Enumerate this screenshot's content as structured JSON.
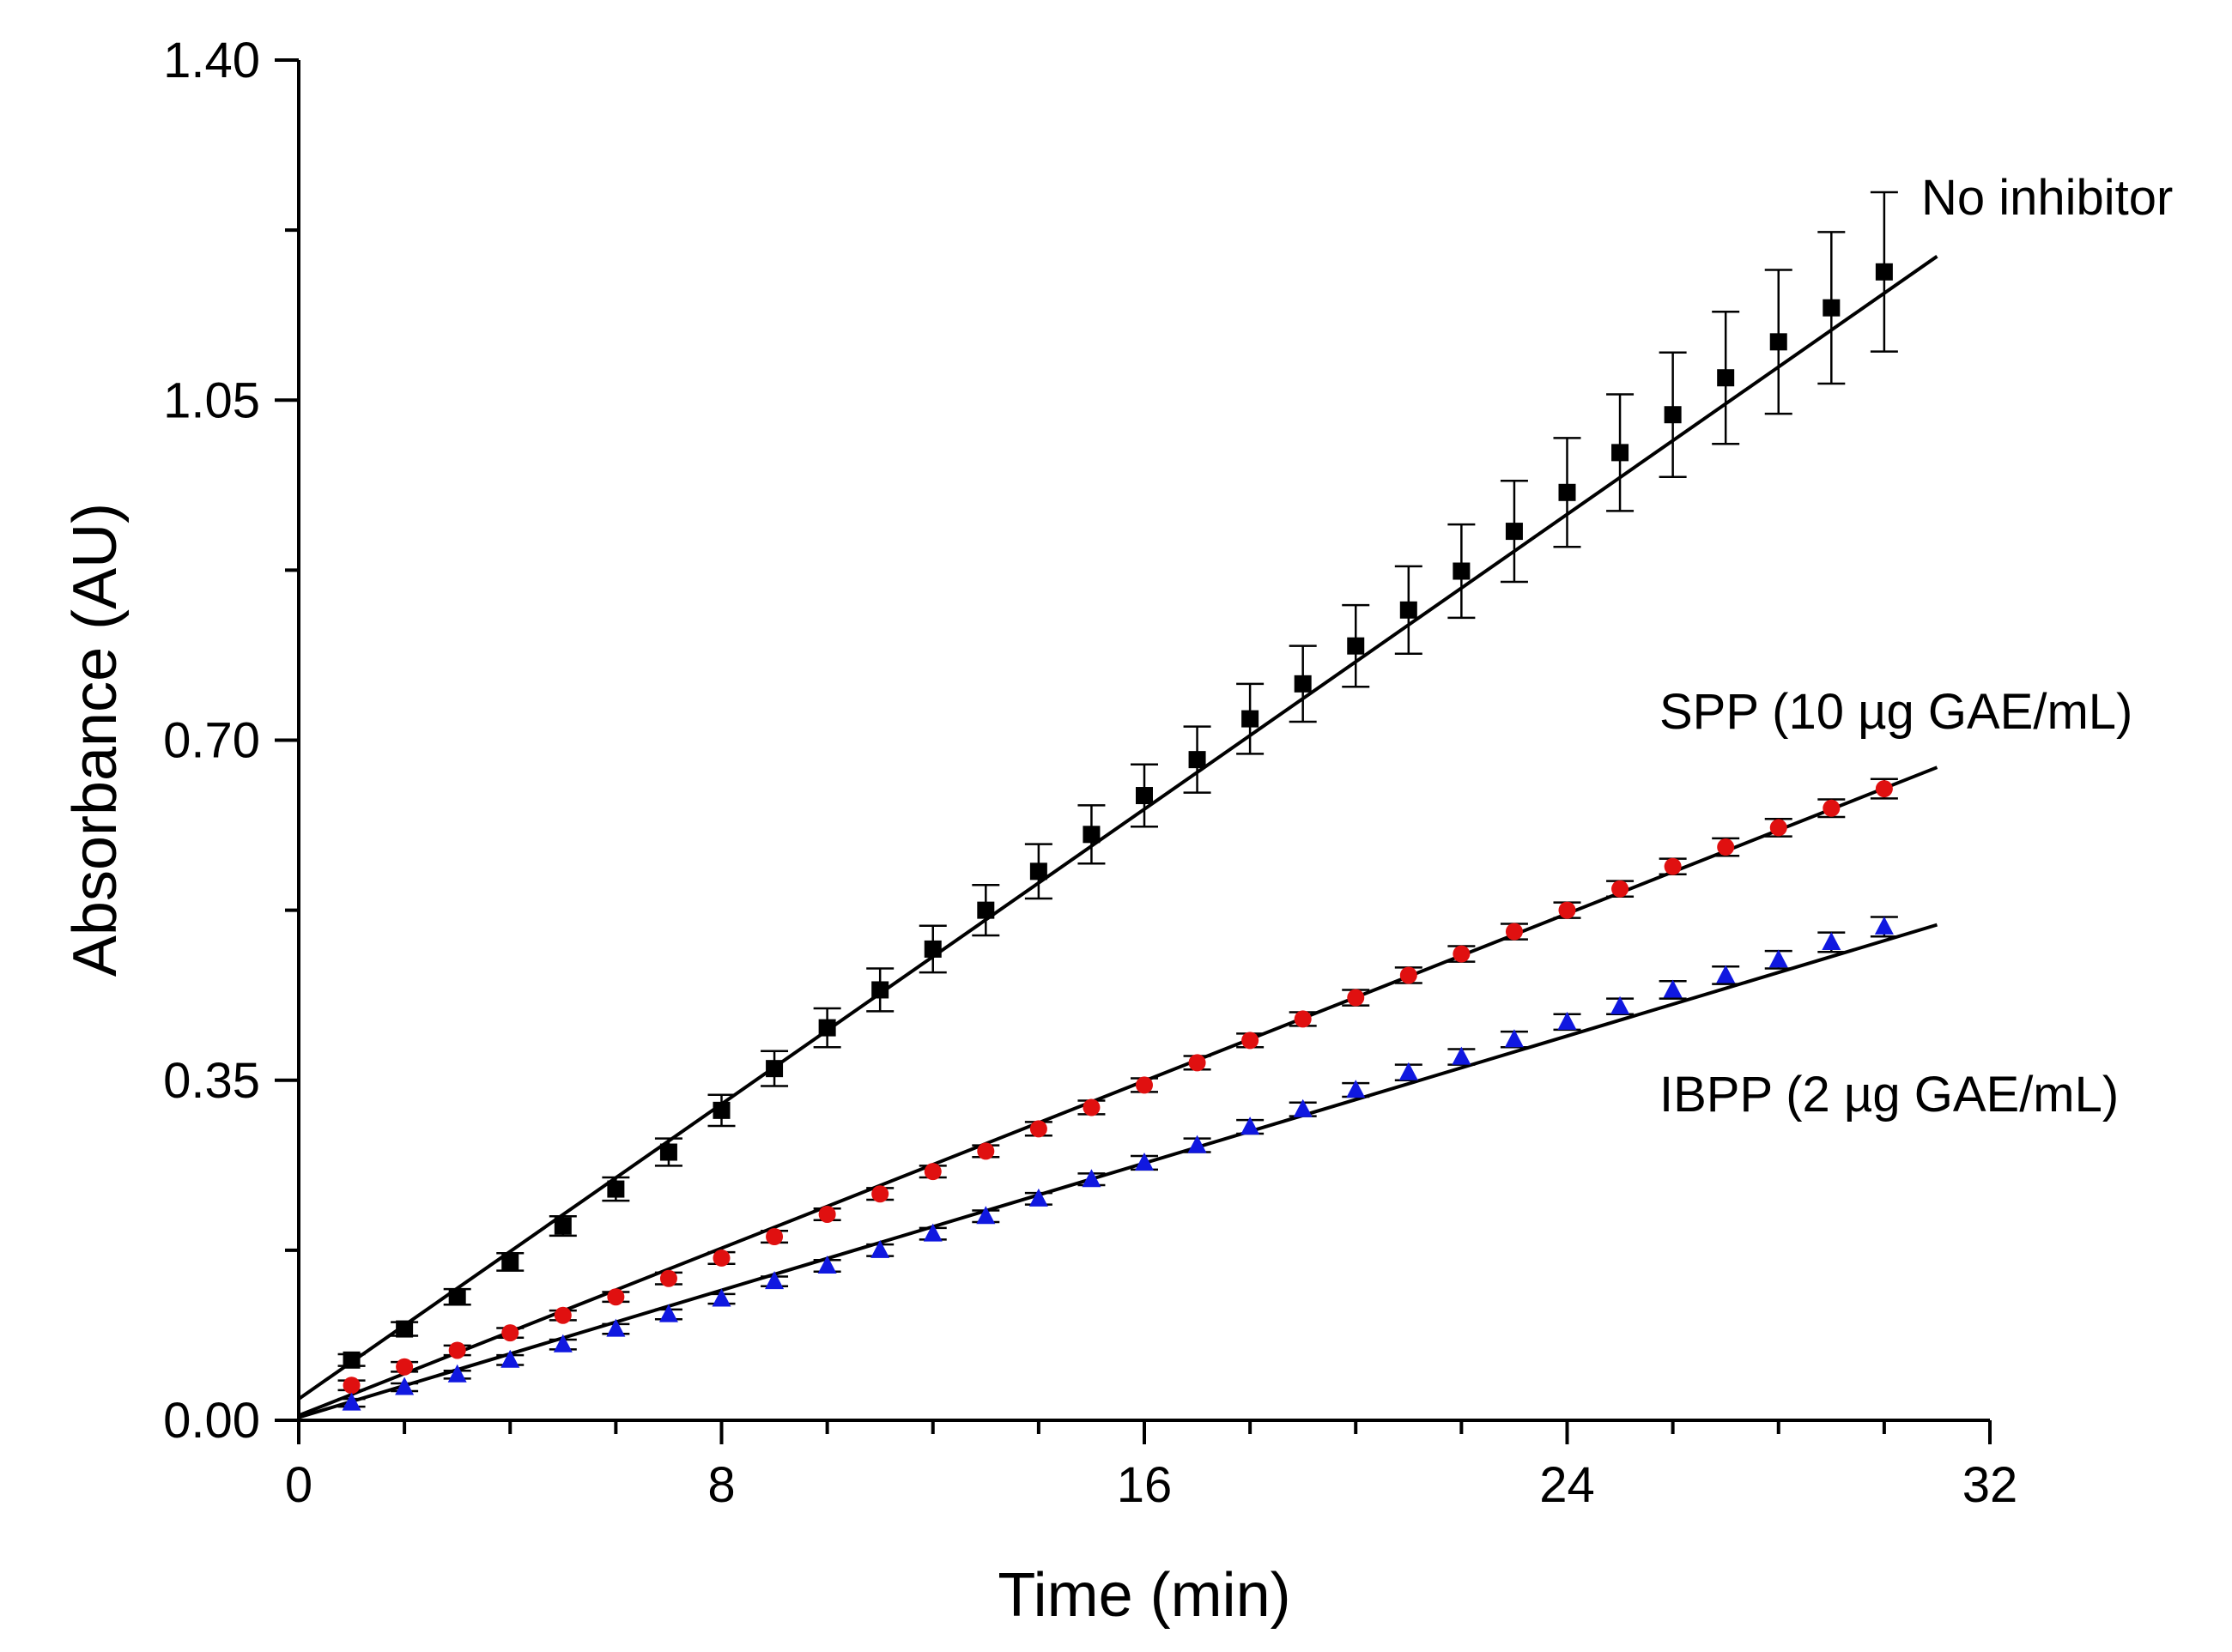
{
  "chart_data": {
    "type": "scatter",
    "xlabel": "Time (min)",
    "ylabel": "Absorbance (AU)",
    "xlim": [
      0,
      32
    ],
    "ylim": [
      0,
      1.4
    ],
    "x_ticks": [
      "0",
      "8",
      "16",
      "24",
      "32"
    ],
    "y_ticks": [
      "0.00",
      "0.35",
      "0.70",
      "1.05",
      "1.40"
    ],
    "x_tick_values": [
      0,
      8,
      16,
      24,
      32
    ],
    "y_tick_values": [
      0,
      0.35,
      0.7,
      1.05,
      1.4
    ],
    "x_minor_step": 2,
    "y_minor_step": 0.175,
    "series": [
      {
        "name": "No inhibitor",
        "marker": "square",
        "color": "#000000",
        "x": [
          1,
          2,
          3,
          4,
          5,
          6,
          7,
          8,
          9,
          10,
          11,
          12,
          13,
          14,
          15,
          16,
          17,
          18,
          19,
          20,
          21,
          22,
          23,
          24,
          25,
          26,
          27,
          28,
          29,
          30
        ],
        "y": [
          0.062,
          0.094,
          0.127,
          0.163,
          0.2,
          0.238,
          0.276,
          0.319,
          0.362,
          0.404,
          0.443,
          0.485,
          0.525,
          0.565,
          0.603,
          0.643,
          0.68,
          0.722,
          0.758,
          0.797,
          0.834,
          0.874,
          0.915,
          0.955,
          0.996,
          1.035,
          1.073,
          1.11,
          1.145,
          1.182
        ],
        "err": [
          0.006,
          0.007,
          0.008,
          0.009,
          0.01,
          0.012,
          0.014,
          0.016,
          0.018,
          0.02,
          0.022,
          0.024,
          0.026,
          0.028,
          0.03,
          0.032,
          0.034,
          0.036,
          0.039,
          0.042,
          0.045,
          0.048,
          0.052,
          0.056,
          0.06,
          0.064,
          0.068,
          0.074,
          0.078,
          0.082
        ],
        "fit": {
          "x": [
            0,
            31
          ],
          "y": [
            0.022,
            1.198
          ]
        }
      },
      {
        "name": "SPP (10 µg GAE/mL)",
        "marker": "circle",
        "color": "#e01010",
        "x": [
          1,
          2,
          3,
          4,
          5,
          6,
          7,
          8,
          9,
          10,
          11,
          12,
          13,
          14,
          15,
          16,
          17,
          18,
          19,
          20,
          21,
          22,
          23,
          24,
          25,
          26,
          27,
          28,
          29,
          30
        ],
        "y": [
          0.036,
          0.055,
          0.072,
          0.09,
          0.108,
          0.127,
          0.146,
          0.167,
          0.189,
          0.212,
          0.233,
          0.256,
          0.277,
          0.3,
          0.322,
          0.345,
          0.368,
          0.391,
          0.413,
          0.435,
          0.458,
          0.48,
          0.503,
          0.525,
          0.547,
          0.57,
          0.59,
          0.61,
          0.63,
          0.65
        ],
        "err": [
          0.005,
          0.005,
          0.005,
          0.005,
          0.005,
          0.005,
          0.006,
          0.006,
          0.006,
          0.006,
          0.006,
          0.006,
          0.006,
          0.007,
          0.007,
          0.007,
          0.007,
          0.007,
          0.007,
          0.008,
          0.008,
          0.008,
          0.008,
          0.008,
          0.008,
          0.008,
          0.009,
          0.009,
          0.009,
          0.01
        ],
        "fit": {
          "x": [
            0,
            31
          ],
          "y": [
            0.005,
            0.672
          ]
        }
      },
      {
        "name": "IBPP (2 µg GAE/mL)",
        "marker": "triangle",
        "color": "#1018e0",
        "x": [
          1,
          2,
          3,
          4,
          5,
          6,
          7,
          8,
          9,
          10,
          11,
          12,
          13,
          14,
          15,
          16,
          17,
          18,
          19,
          20,
          21,
          22,
          23,
          24,
          25,
          26,
          27,
          28,
          29,
          30
        ],
        "y": [
          0.018,
          0.034,
          0.047,
          0.062,
          0.078,
          0.094,
          0.109,
          0.125,
          0.143,
          0.159,
          0.175,
          0.192,
          0.21,
          0.228,
          0.248,
          0.265,
          0.283,
          0.302,
          0.32,
          0.34,
          0.358,
          0.374,
          0.392,
          0.41,
          0.426,
          0.443,
          0.458,
          0.474,
          0.492,
          0.508
        ],
        "err": [
          0.004,
          0.004,
          0.004,
          0.005,
          0.005,
          0.005,
          0.005,
          0.005,
          0.005,
          0.006,
          0.006,
          0.006,
          0.006,
          0.006,
          0.006,
          0.007,
          0.007,
          0.007,
          0.007,
          0.007,
          0.008,
          0.008,
          0.008,
          0.008,
          0.008,
          0.009,
          0.009,
          0.009,
          0.01,
          0.01
        ],
        "fit": {
          "x": [
            0,
            31
          ],
          "y": [
            0.003,
            0.51
          ]
        }
      }
    ]
  }
}
